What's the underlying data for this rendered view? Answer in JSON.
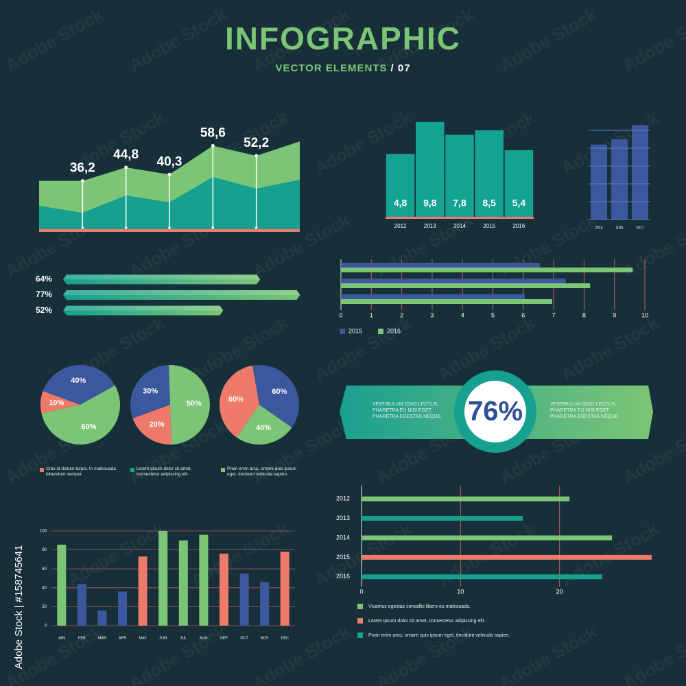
{
  "header": {
    "title": "INFOGRAPHIC",
    "subtitle": "VECTOR ELEMENTS",
    "subtitle_suffix": "/ 07"
  },
  "watermark": {
    "text": "Adobe Stock",
    "side_text": "Adobe Stock | #158745641"
  },
  "chart_data": [
    {
      "type": "area",
      "categories": [
        null,
        null,
        null,
        null,
        null,
        null,
        null
      ],
      "series": [
        {
          "color": "#7cc576",
          "values": [
            36.2,
            36.2,
            44.8,
            40.3,
            58.6,
            52.2,
            61.4
          ],
          "value_labels": [
            null,
            "36,2",
            "44,8",
            "40,3",
            "58,6",
            "52,2",
            null
          ]
        },
        {
          "color": "#15a08f",
          "values": [
            20.3,
            15.9,
            26.9,
            22.5,
            38.7,
            31.3,
            36.9
          ]
        }
      ],
      "ylim": [
        5,
        75
      ]
    },
    {
      "type": "bar",
      "categories": [
        "2012",
        "2013",
        "2014",
        "2015",
        "2016"
      ],
      "values": [
        4.8,
        9.8,
        7.8,
        8.5,
        5.4
      ],
      "value_labels": [
        "4,8",
        "9,8",
        "7,8",
        "8,5",
        "5,4"
      ],
      "color": "#14a392",
      "ylim": [
        -5,
        10
      ]
    },
    {
      "type": "bar",
      "categories": [
        "2015",
        "2016",
        "2017"
      ],
      "values": [
        4.2,
        4.5,
        5.3
      ],
      "color": "#3b579d",
      "ylim": [
        0,
        5.5
      ],
      "gridlines": [
        0,
        1,
        2,
        3,
        4,
        5
      ],
      "grid": true
    },
    {
      "type": "progress",
      "values": [
        64,
        77,
        52
      ],
      "value_labels": [
        "64%",
        "77%",
        "52%"
      ],
      "xlim": [
        0,
        78
      ]
    },
    {
      "type": "hbar",
      "categories": [
        null,
        null,
        null
      ],
      "series": [
        {
          "name": "2015",
          "color": "#3b579d",
          "values": [
            6.55,
            7.4,
            6.05
          ]
        },
        {
          "name": "2016",
          "color": "#7cc576",
          "values": [
            9.6,
            8.2,
            6.95
          ]
        }
      ],
      "xlim": [
        0,
        10
      ],
      "xticks": [
        0,
        1,
        2,
        3,
        4,
        5,
        6,
        7,
        8,
        9,
        10
      ],
      "grid": true
    },
    {
      "type": "pie",
      "values": [
        40,
        60,
        10
      ],
      "value_labels": [
        "40%",
        "60%",
        "10%"
      ],
      "colors": [
        "#3b579d",
        "#7cc576",
        "#ee7a6a"
      ]
    },
    {
      "type": "pie",
      "values": [
        30,
        50,
        20
      ],
      "value_labels": [
        "30%",
        "50%",
        "20%"
      ],
      "colors": [
        "#3b579d",
        "#7cc576",
        "#ee7a6a"
      ]
    },
    {
      "type": "pie",
      "values": [
        60,
        40,
        60
      ],
      "value_labels": [
        "60%",
        "40%",
        "60%"
      ],
      "colors": [
        "#3b579d",
        "#7cc576",
        "#ee7a6a"
      ]
    },
    {
      "type": "bar",
      "categories": [
        "JAN",
        "FEB",
        "MAR",
        "APR",
        "MAY",
        "JUN",
        "JUL",
        "AUG",
        "SEP",
        "OCT",
        "NOV",
        "DEC"
      ],
      "values": [
        85.5,
        44,
        16,
        36,
        73,
        100,
        90,
        96,
        76,
        55,
        46,
        78
      ],
      "colors": [
        "#7cc576",
        "#3b579d",
        "#3b579d",
        "#3b579d",
        "#ee7a6a",
        "#7cc576",
        "#7cc576",
        "#7cc576",
        "#ee7a6a",
        "#3b579d",
        "#3b579d",
        "#ee7a6a"
      ],
      "ylim": [
        0,
        100
      ],
      "yticks": [
        0,
        20,
        40,
        60,
        80,
        100
      ],
      "grid": true
    },
    {
      "type": "hbar",
      "categories": [
        "2012",
        "2013",
        "2014",
        "2015",
        "2016"
      ],
      "values": [
        21,
        16.3,
        25.3,
        29.3,
        24.3
      ],
      "colors": [
        "#7cc576",
        "#15a08f",
        "#7cc576",
        "#ee7a6a",
        "#15a08f"
      ],
      "xlim": [
        0,
        30
      ],
      "xticks": [
        0,
        10,
        20
      ],
      "grid": true,
      "legend": [
        {
          "label": "Vivamus egestas convallis libero eu malesuada.",
          "color": "#7cc576"
        },
        {
          "label": "Lorem ipsum dolor sit amet, consectetur adipiscing elit.",
          "color": "#ee7a6a"
        },
        {
          "label": "Proin enim arcu, ornare quis ipsum eget, tincidunt vehicula sapien.",
          "color": "#15a08f"
        }
      ]
    }
  ],
  "pie_legend": [
    {
      "label": "Cras id dictum turpis. In malesuada bibendum semper.",
      "color": "#ee7a6a"
    },
    {
      "label": "Lorem ipsum dolor sit amet, consectetur adipiscing elit.",
      "color": "#15a08f"
    },
    {
      "label": "Proin enim arcu, ornare quis ipsum eget, tincidunt vehicula sapien.",
      "color": "#7cc576"
    }
  ],
  "banner": {
    "label": "76%",
    "left_text": "VESTIBULUM ODIO LECTUS, PHARETRA EU NISI EGET, PHARETRA EGESTAS NEQUE.",
    "right_text": "VESTIBULUM ODIO LECTUS, PHARETRA EU NISI EGET, PHARETRA EGESTAS NEQUE."
  }
}
